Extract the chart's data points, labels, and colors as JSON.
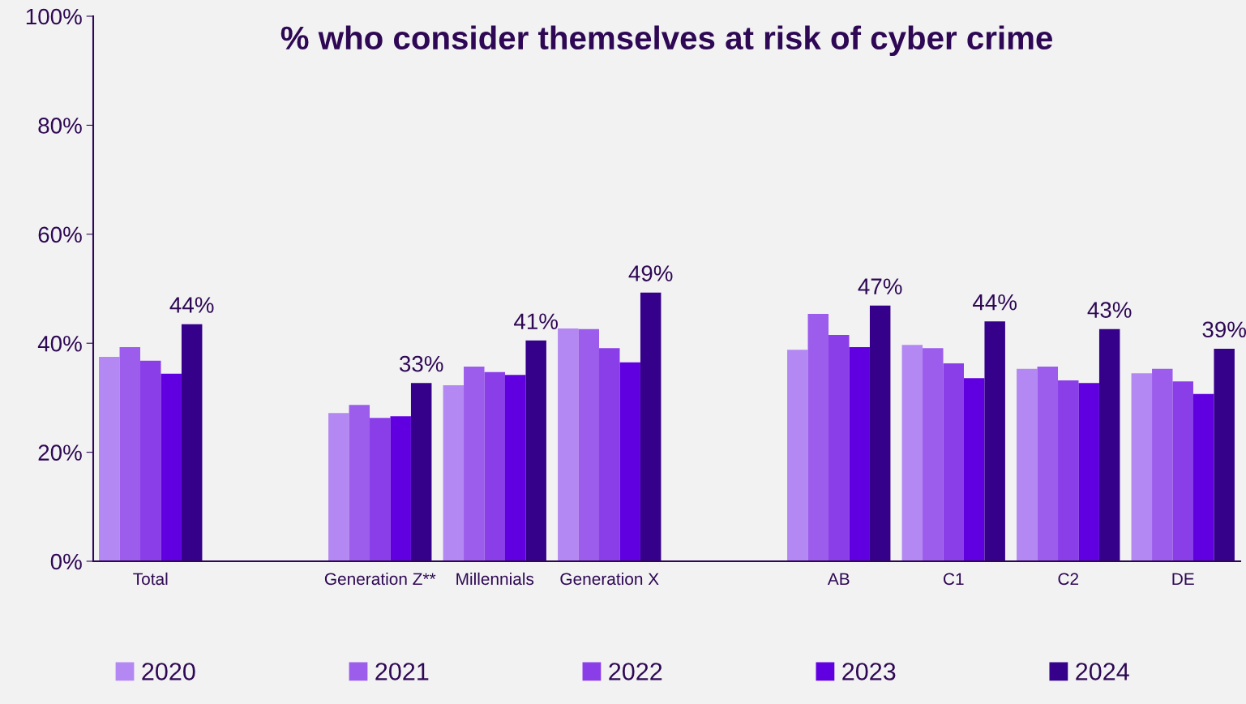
{
  "chart_data": {
    "type": "bar",
    "title": "% who consider themselves at risk of cyber crime",
    "categories": [
      "Total",
      null,
      "Generation Z**",
      "Millennials",
      "Generation X",
      null,
      "AB",
      "C1",
      "C2",
      "DE"
    ],
    "series": [
      {
        "name": "2020",
        "color": "#b388f2",
        "values": [
          37.5,
          null,
          27.2,
          32.3,
          42.7,
          null,
          38.8,
          39.7,
          35.3,
          34.5
        ]
      },
      {
        "name": "2021",
        "color": "#9c5cec",
        "values": [
          39.3,
          null,
          28.7,
          35.7,
          42.6,
          null,
          45.4,
          39.1,
          35.7,
          35.3
        ]
      },
      {
        "name": "2022",
        "color": "#8a3ee8",
        "values": [
          36.8,
          null,
          26.3,
          34.7,
          39.1,
          null,
          41.5,
          36.3,
          33.2,
          33.0
        ]
      },
      {
        "name": "2023",
        "color": "#6000e0",
        "values": [
          34.4,
          null,
          26.6,
          34.2,
          36.5,
          null,
          39.3,
          33.6,
          32.7,
          30.7
        ]
      },
      {
        "name": "2024",
        "color": "#35008a",
        "values": [
          43.5,
          null,
          32.7,
          40.5,
          49.3,
          null,
          46.9,
          44.0,
          42.6,
          39.0
        ],
        "value_labels": [
          "44%",
          null,
          "33%",
          "41%",
          "49%",
          null,
          "47%",
          "44%",
          "43%",
          "39%"
        ]
      }
    ],
    "ylim": [
      0,
      100
    ],
    "yticks": [
      {
        "value": 0,
        "label": "0%"
      },
      {
        "value": 20,
        "label": "20%"
      },
      {
        "value": 40,
        "label": "40%"
      },
      {
        "value": 60,
        "label": "60%"
      },
      {
        "value": 80,
        "label": "80%"
      },
      {
        "value": 100,
        "label": "100%"
      }
    ],
    "grid": false,
    "legend": "bottom"
  }
}
